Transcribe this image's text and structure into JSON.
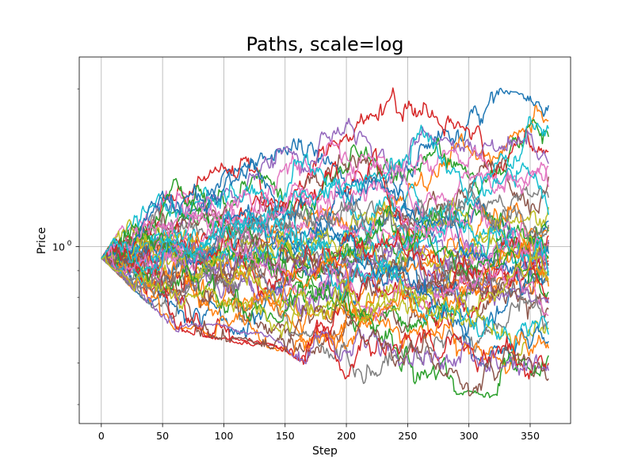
{
  "chart_data": {
    "type": "line",
    "title": "Paths, scale=log",
    "xlabel": "Step",
    "ylabel": "Price",
    "x_scale": "linear",
    "y_scale": "log",
    "xlim": [
      -18,
      383
    ],
    "ylim": [
      0.46,
      2.3
    ],
    "grid": true,
    "x_ticks": [
      0,
      50,
      100,
      150,
      200,
      250,
      300,
      350
    ],
    "x_tick_labels": [
      "0",
      "50",
      "100",
      "150",
      "200",
      "250",
      "300",
      "350"
    ],
    "y_major_ticks": [
      1
    ],
    "y_major_tick_label": {
      "base": "10",
      "exponent": "0"
    },
    "y_minor_ticks": [
      0.5,
      0.6,
      0.7,
      0.8,
      0.9,
      2
    ],
    "n_steps": 366,
    "start_value": 0.95,
    "series_count": 50,
    "colors": [
      "#1f77b4",
      "#ff7f0e",
      "#2ca02c",
      "#d62728",
      "#9467bd",
      "#8c564b",
      "#e377c2",
      "#7f7f7f",
      "#bcbd22",
      "#17becf"
    ],
    "envelope": {
      "upper": [
        [
          0,
          0.95
        ],
        [
          25,
          1.17
        ],
        [
          60,
          1.35
        ],
        [
          100,
          1.45
        ],
        [
          150,
          1.55
        ],
        [
          185,
          1.85
        ],
        [
          230,
          2.05
        ],
        [
          300,
          2.05
        ],
        [
          330,
          2.0
        ],
        [
          365,
          1.9
        ]
      ],
      "lower": [
        [
          0,
          0.95
        ],
        [
          25,
          0.83
        ],
        [
          60,
          0.69
        ],
        [
          100,
          0.66
        ],
        [
          150,
          0.63
        ],
        [
          185,
          0.55
        ],
        [
          230,
          0.52
        ],
        [
          300,
          0.52
        ],
        [
          330,
          0.51
        ],
        [
          365,
          0.55
        ]
      ]
    },
    "final_values": [
      1.86,
      1.74,
      1.62,
      1.52,
      1.44,
      1.36,
      1.3,
      1.24,
      1.19,
      1.15,
      1.12,
      1.09,
      1.07,
      1.05,
      1.03,
      1.02,
      1.01,
      1.0,
      0.99,
      0.98,
      0.97,
      0.96,
      0.95,
      0.94,
      0.93,
      0.92,
      0.91,
      0.9,
      0.89,
      0.88,
      0.86,
      0.84,
      0.82,
      0.8,
      0.78,
      0.76,
      0.74,
      0.72,
      0.7,
      0.68,
      0.66,
      0.64,
      0.62,
      0.6,
      0.58,
      0.56,
      1.42,
      1.1,
      0.87,
      1.68
    ]
  }
}
